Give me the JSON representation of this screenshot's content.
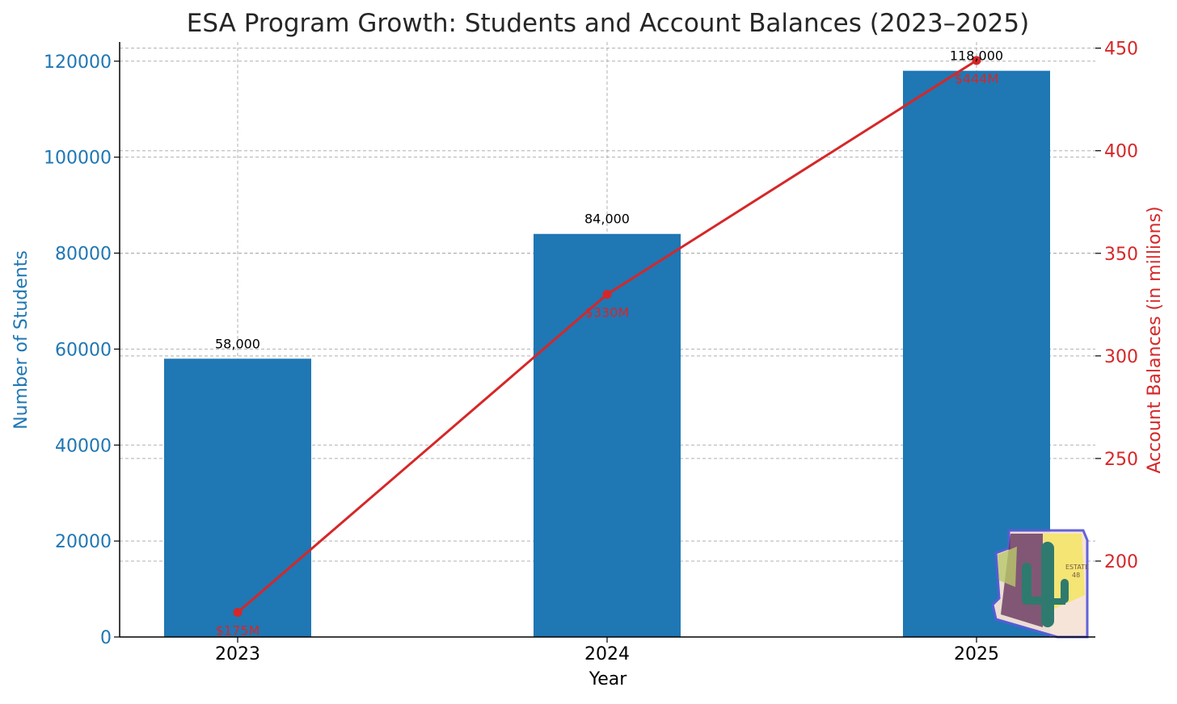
{
  "chart_data": {
    "type": "bar",
    "title": "ESA Program Growth: Students and Account Balances (2023–2025)",
    "xlabel": "Year",
    "categories": [
      "2023",
      "2024",
      "2025"
    ],
    "grid": true,
    "colors": {
      "students": "#1f77b4",
      "balances": "#d62728",
      "axis": "#000000",
      "grid": "#b0b0b0",
      "title": "#262626"
    },
    "primary_axis": {
      "label": "Number of Students",
      "ylim": [
        0,
        124000
      ],
      "ticks": [
        0,
        20000,
        40000,
        60000,
        80000,
        100000,
        120000
      ],
      "tick_labels": [
        "0",
        "20000",
        "40000",
        "60000",
        "80000",
        "100000",
        "120000"
      ]
    },
    "secondary_axis": {
      "label": "Account Balances (in millions)",
      "ylim": [
        163,
        453
      ],
      "ticks": [
        200,
        250,
        300,
        350,
        400,
        450
      ],
      "tick_labels": [
        "200",
        "250",
        "300",
        "350",
        "400",
        "450"
      ]
    },
    "series": [
      {
        "type": "bar",
        "axis": "primary",
        "values": [
          58000,
          84000,
          118000
        ],
        "data_labels": [
          "58,000",
          "84,000",
          "118,000"
        ]
      },
      {
        "type": "line",
        "axis": "secondary",
        "values": [
          175,
          330,
          444
        ],
        "data_labels": [
          "$175M",
          "$330M",
          "$444M"
        ]
      }
    ],
    "decorative_logo": {
      "icon": "arizona-cactus-icon",
      "text": [
        "ESTATE",
        "48"
      ]
    }
  }
}
